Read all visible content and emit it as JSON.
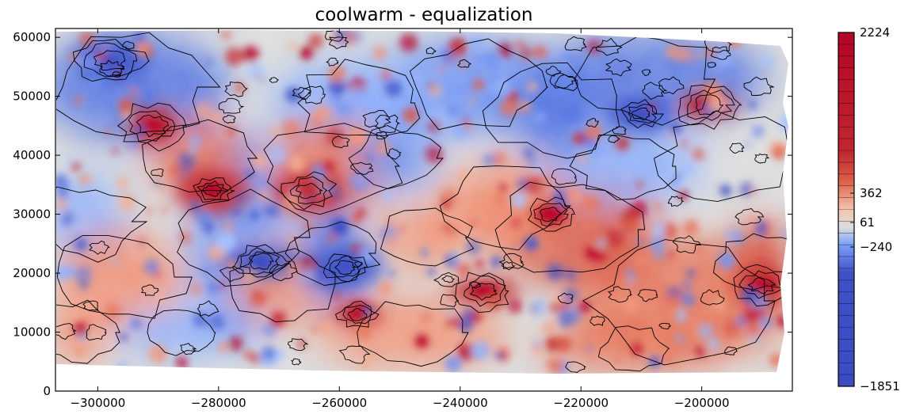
{
  "chart_data": {
    "type": "heatmap",
    "title": "coolwarm - equalization",
    "xlabel": "",
    "ylabel": "",
    "xlim": [
      -307000,
      -185000
    ],
    "ylim": [
      0,
      61500
    ],
    "x_ticks": [
      -300000,
      -280000,
      -260000,
      -240000,
      -220000,
      -200000
    ],
    "x_tick_labels": [
      "−300000",
      "−280000",
      "−260000",
      "−240000",
      "−220000",
      "−200000"
    ],
    "y_ticks": [
      0,
      10000,
      20000,
      30000,
      40000,
      50000,
      60000
    ],
    "y_tick_labels": [
      "0",
      "10000",
      "20000",
      "30000",
      "40000",
      "50000",
      "60000"
    ],
    "colorbar": {
      "colormap": "coolwarm",
      "scaling": "equalization",
      "ticks": [
        -1851,
        -240,
        61,
        362,
        2224
      ],
      "tick_labels": [
        "−1851",
        "−240",
        "61",
        "362",
        "2224"
      ]
    },
    "notable_features": [
      {
        "kind": "high",
        "x": -190000,
        "y": 18000
      },
      {
        "kind": "high",
        "x": -225000,
        "y": 30000
      },
      {
        "kind": "high",
        "x": -265000,
        "y": 34000
      },
      {
        "kind": "high",
        "x": -291000,
        "y": 45000
      },
      {
        "kind": "high",
        "x": -257000,
        "y": 13000
      },
      {
        "kind": "high",
        "x": -236000,
        "y": 17000
      },
      {
        "kind": "high",
        "x": -281000,
        "y": 34000
      },
      {
        "kind": "high",
        "x": -199000,
        "y": 48500
      },
      {
        "kind": "low",
        "x": -259000,
        "y": 21000
      },
      {
        "kind": "low",
        "x": -298000,
        "y": 56000
      },
      {
        "kind": "low",
        "x": -210000,
        "y": 47000
      },
      {
        "kind": "low",
        "x": -273000,
        "y": 22000
      }
    ],
    "colors": {
      "low": "#3b4cc0",
      "mid": "#dddddd",
      "high": "#b40426",
      "nodata": "#ffffff"
    }
  }
}
